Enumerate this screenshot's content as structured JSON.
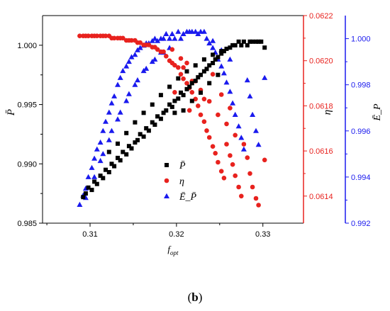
{
  "panel_label": {
    "open": "(",
    "letter": "b",
    "close": ")"
  },
  "chart_data": {
    "type": "scatter",
    "xlabel": {
      "base": "f",
      "sub": "opt"
    },
    "x_ticks": [
      0.31,
      0.32,
      0.33
    ],
    "xlim": [
      0.3045,
      0.3347
    ],
    "axes": {
      "left": {
        "label": "P̄",
        "lim": [
          0.985,
          1.0025
        ],
        "ticks": [
          0.985,
          0.99,
          0.995,
          1.0
        ],
        "tick_labels": [
          "0.985",
          "0.990",
          "0.995",
          "1.000"
        ],
        "color": "#000000"
      },
      "right1": {
        "label": "η",
        "lim": [
          0.06128,
          0.0622
        ],
        "ticks": [
          0.0614,
          0.0616,
          0.0618,
          0.062,
          0.0622
        ],
        "tick_labels": [
          "0.0614",
          "0.0616",
          "0.0618",
          "0.0620",
          "0.0622"
        ],
        "color": "#e8221e"
      },
      "right2": {
        "label": "Ē_P",
        "lim": [
          0.992,
          1.001
        ],
        "ticks": [
          0.992,
          0.994,
          0.996,
          0.998,
          1.0
        ],
        "tick_labels": [
          "0.992",
          "0.994",
          "0.996",
          "0.998",
          "1.000"
        ],
        "color": "#1a1aee"
      }
    },
    "legend": {
      "placement": "center-bottom",
      "entries": [
        "P̄",
        "η",
        "Ē_P̄"
      ]
    },
    "series": [
      {
        "label": "P̄",
        "axis": "left",
        "marker": "square",
        "color": "#000000",
        "points": [
          [
            0.3092,
            0.9872
          ],
          [
            0.3095,
            0.9875
          ],
          [
            0.3098,
            0.988
          ],
          [
            0.3102,
            0.9878
          ],
          [
            0.3105,
            0.9885
          ],
          [
            0.3108,
            0.9883
          ],
          [
            0.3112,
            0.989
          ],
          [
            0.3115,
            0.9888
          ],
          [
            0.3118,
            0.9895
          ],
          [
            0.3122,
            0.9893
          ],
          [
            0.3125,
            0.99
          ],
          [
            0.3128,
            0.9898
          ],
          [
            0.3132,
            0.9905
          ],
          [
            0.3135,
            0.9903
          ],
          [
            0.3138,
            0.991
          ],
          [
            0.3142,
            0.9908
          ],
          [
            0.3145,
            0.9915
          ],
          [
            0.3148,
            0.9913
          ],
          [
            0.3152,
            0.9918
          ],
          [
            0.3155,
            0.992
          ],
          [
            0.3158,
            0.9925
          ],
          [
            0.3162,
            0.9923
          ],
          [
            0.3165,
            0.993
          ],
          [
            0.3168,
            0.9928
          ],
          [
            0.3172,
            0.9935
          ],
          [
            0.3175,
            0.9933
          ],
          [
            0.3178,
            0.994
          ],
          [
            0.3182,
            0.9938
          ],
          [
            0.3185,
            0.9943
          ],
          [
            0.3188,
            0.9945
          ],
          [
            0.3192,
            0.995
          ],
          [
            0.3195,
            0.9948
          ],
          [
            0.3198,
            0.9953
          ],
          [
            0.3202,
            0.9955
          ],
          [
            0.3205,
            0.996
          ],
          [
            0.3208,
            0.9958
          ],
          [
            0.3212,
            0.9963
          ],
          [
            0.3215,
            0.9965
          ],
          [
            0.3218,
            0.9968
          ],
          [
            0.3222,
            0.997
          ],
          [
            0.3225,
            0.9973
          ],
          [
            0.3228,
            0.9975
          ],
          [
            0.3232,
            0.9978
          ],
          [
            0.3235,
            0.998
          ],
          [
            0.3238,
            0.9983
          ],
          [
            0.3242,
            0.9985
          ],
          [
            0.3245,
            0.9988
          ],
          [
            0.3248,
            0.999
          ],
          [
            0.3252,
            0.9993
          ],
          [
            0.3255,
            0.9995
          ],
          [
            0.3258,
            0.9997
          ],
          [
            0.3262,
            0.9998
          ],
          [
            0.3265,
            1.0
          ],
          [
            0.3268,
            1.0
          ],
          [
            0.3272,
            1.0003
          ],
          [
            0.3275,
            1.0
          ],
          [
            0.3278,
            1.0003
          ],
          [
            0.3282,
            1.0
          ],
          [
            0.3285,
            1.0003
          ],
          [
            0.3288,
            1.0003
          ],
          [
            0.3292,
            1.0003
          ],
          [
            0.3295,
            1.0003
          ],
          [
            0.3298,
            1.0003
          ],
          [
            0.3302,
            0.9998
          ],
          [
            0.3142,
            0.9926
          ],
          [
            0.3152,
            0.9935
          ],
          [
            0.3162,
            0.9943
          ],
          [
            0.3172,
            0.995
          ],
          [
            0.3182,
            0.9958
          ],
          [
            0.3192,
            0.9965
          ],
          [
            0.3202,
            0.9972
          ],
          [
            0.3212,
            0.9978
          ],
          [
            0.3222,
            0.9983
          ],
          [
            0.3232,
            0.9988
          ],
          [
            0.3242,
            0.9992
          ],
          [
            0.3252,
            0.9995
          ],
          [
            0.3122,
            0.991
          ],
          [
            0.3132,
            0.9917
          ],
          [
            0.3198,
            0.9943
          ],
          [
            0.3208,
            0.9945
          ],
          [
            0.3218,
            0.9953
          ],
          [
            0.3228,
            0.996
          ],
          [
            0.3238,
            0.9968
          ],
          [
            0.3248,
            0.9975
          ]
        ]
      },
      {
        "label": "η",
        "axis": "right1",
        "marker": "circle",
        "color": "#e8221e",
        "points": [
          [
            0.3088,
            0.06211
          ],
          [
            0.3092,
            0.06211
          ],
          [
            0.3095,
            0.06211
          ],
          [
            0.3098,
            0.06211
          ],
          [
            0.3102,
            0.06211
          ],
          [
            0.3105,
            0.06211
          ],
          [
            0.3108,
            0.06211
          ],
          [
            0.3112,
            0.06211
          ],
          [
            0.3115,
            0.06211
          ],
          [
            0.3118,
            0.06211
          ],
          [
            0.3122,
            0.06211
          ],
          [
            0.3125,
            0.0621
          ],
          [
            0.3128,
            0.0621
          ],
          [
            0.3132,
            0.0621
          ],
          [
            0.3135,
            0.0621
          ],
          [
            0.3138,
            0.0621
          ],
          [
            0.3142,
            0.06209
          ],
          [
            0.3145,
            0.06209
          ],
          [
            0.3148,
            0.06209
          ],
          [
            0.3152,
            0.06209
          ],
          [
            0.3155,
            0.06208
          ],
          [
            0.3158,
            0.06208
          ],
          [
            0.3162,
            0.06207
          ],
          [
            0.3165,
            0.06207
          ],
          [
            0.3168,
            0.06207
          ],
          [
            0.3172,
            0.06206
          ],
          [
            0.3175,
            0.06206
          ],
          [
            0.3178,
            0.06205
          ],
          [
            0.3182,
            0.06204
          ],
          [
            0.3185,
            0.06204
          ],
          [
            0.3188,
            0.06202
          ],
          [
            0.3192,
            0.062
          ],
          [
            0.3195,
            0.06199
          ],
          [
            0.3198,
            0.06198
          ],
          [
            0.3202,
            0.06197
          ],
          [
            0.3205,
            0.06194
          ],
          [
            0.3208,
            0.06192
          ],
          [
            0.3212,
            0.0619
          ],
          [
            0.3215,
            0.06188
          ],
          [
            0.3218,
            0.06186
          ],
          [
            0.3222,
            0.06183
          ],
          [
            0.3225,
            0.0618
          ],
          [
            0.3228,
            0.06176
          ],
          [
            0.3232,
            0.06173
          ],
          [
            0.3235,
            0.06169
          ],
          [
            0.3238,
            0.06166
          ],
          [
            0.3242,
            0.06162
          ],
          [
            0.3245,
            0.06159
          ],
          [
            0.3248,
            0.06155
          ],
          [
            0.3252,
            0.06151
          ],
          [
            0.3255,
            0.06148
          ],
          [
            0.3258,
            0.06163
          ],
          [
            0.3262,
            0.06158
          ],
          [
            0.3265,
            0.06154
          ],
          [
            0.3268,
            0.06149
          ],
          [
            0.3272,
            0.06144
          ],
          [
            0.3275,
            0.0614
          ],
          [
            0.3278,
            0.06163
          ],
          [
            0.3282,
            0.06157
          ],
          [
            0.3285,
            0.0615
          ],
          [
            0.3288,
            0.06144
          ],
          [
            0.3292,
            0.06139
          ],
          [
            0.3295,
            0.06136
          ],
          [
            0.3302,
            0.06156
          ],
          [
            0.3195,
            0.06205
          ],
          [
            0.3208,
            0.06197
          ],
          [
            0.3218,
            0.06191
          ],
          [
            0.3228,
            0.06187
          ],
          [
            0.3238,
            0.06182
          ],
          [
            0.3248,
            0.06176
          ],
          [
            0.3258,
            0.06172
          ],
          [
            0.3268,
            0.06167
          ],
          [
            0.3198,
            0.06186
          ],
          [
            0.3215,
            0.06178
          ],
          [
            0.3232,
            0.06183
          ],
          [
            0.3242,
            0.06194
          ],
          [
            0.3252,
            0.06185
          ],
          [
            0.3262,
            0.06179
          ],
          [
            0.3205,
            0.06201
          ],
          [
            0.3222,
            0.06191
          ],
          [
            0.3212,
            0.06199
          ]
        ]
      },
      {
        "label": "Ē_P̄",
        "axis": "right2",
        "marker": "triangle",
        "color": "#1a1aee",
        "points": [
          [
            0.3088,
            0.9928
          ],
          [
            0.3092,
            0.9932
          ],
          [
            0.3095,
            0.9935
          ],
          [
            0.3098,
            0.994
          ],
          [
            0.3102,
            0.9944
          ],
          [
            0.3105,
            0.9948
          ],
          [
            0.3108,
            0.9952
          ],
          [
            0.3112,
            0.9955
          ],
          [
            0.3115,
            0.996
          ],
          [
            0.3118,
            0.9964
          ],
          [
            0.3122,
            0.9968
          ],
          [
            0.3125,
            0.9972
          ],
          [
            0.3128,
            0.9975
          ],
          [
            0.3132,
            0.998
          ],
          [
            0.3135,
            0.9983
          ],
          [
            0.3138,
            0.9986
          ],
          [
            0.3142,
            0.9988
          ],
          [
            0.3145,
            0.999
          ],
          [
            0.3148,
            0.9992
          ],
          [
            0.3152,
            0.9993
          ],
          [
            0.3155,
            0.9995
          ],
          [
            0.3158,
            0.9996
          ],
          [
            0.3162,
            0.9997
          ],
          [
            0.3165,
            0.9998
          ],
          [
            0.3168,
            0.9998
          ],
          [
            0.3172,
            0.9999
          ],
          [
            0.3175,
            1.0
          ],
          [
            0.3178,
            0.9999
          ],
          [
            0.3182,
            1.0
          ],
          [
            0.3185,
            1.0
          ],
          [
            0.3188,
            1.0002
          ],
          [
            0.3192,
            1.0
          ],
          [
            0.3195,
            1.0002
          ],
          [
            0.3198,
            1.0
          ],
          [
            0.3202,
            1.0003
          ],
          [
            0.3205,
            1.0
          ],
          [
            0.3208,
            1.0002
          ],
          [
            0.3212,
            1.0003
          ],
          [
            0.3215,
            1.0003
          ],
          [
            0.3218,
            1.0003
          ],
          [
            0.3222,
            1.0003
          ],
          [
            0.3225,
            1.0002
          ],
          [
            0.3228,
            1.0003
          ],
          [
            0.3232,
            1.0003
          ],
          [
            0.3235,
            1.0
          ],
          [
            0.3238,
            0.9998
          ],
          [
            0.3242,
            0.9996
          ],
          [
            0.3245,
            0.9994
          ],
          [
            0.3248,
            0.9991
          ],
          [
            0.3252,
            0.9988
          ],
          [
            0.3255,
            0.9985
          ],
          [
            0.3258,
            0.9981
          ],
          [
            0.3262,
            0.9977
          ],
          [
            0.3265,
            0.9972
          ],
          [
            0.3268,
            0.9967
          ],
          [
            0.3272,
            0.9962
          ],
          [
            0.3275,
            0.9957
          ],
          [
            0.3278,
            0.9952
          ],
          [
            0.3282,
            0.9982
          ],
          [
            0.3285,
            0.9975
          ],
          [
            0.3288,
            0.9967
          ],
          [
            0.3292,
            0.996
          ],
          [
            0.3295,
            0.9954
          ],
          [
            0.3302,
            0.9983
          ],
          [
            0.3095,
            0.9931
          ],
          [
            0.3105,
            0.994
          ],
          [
            0.3115,
            0.995
          ],
          [
            0.3125,
            0.996
          ],
          [
            0.3135,
            0.9968
          ],
          [
            0.3145,
            0.9976
          ],
          [
            0.3155,
            0.9982
          ],
          [
            0.3165,
            0.9987
          ],
          [
            0.3175,
            0.9991
          ],
          [
            0.3185,
            0.9994
          ],
          [
            0.3112,
            0.9947
          ],
          [
            0.3122,
            0.9956
          ],
          [
            0.3132,
            0.9965
          ],
          [
            0.3142,
            0.9973
          ],
          [
            0.3152,
            0.998
          ],
          [
            0.3162,
            0.9986
          ],
          [
            0.3172,
            0.999
          ],
          [
            0.3182,
            0.9994
          ],
          [
            0.3192,
            0.9996
          ],
          [
            0.3242,
            0.9999
          ],
          [
            0.3252,
            0.9995
          ],
          [
            0.3262,
            0.9991
          ]
        ]
      }
    ]
  }
}
